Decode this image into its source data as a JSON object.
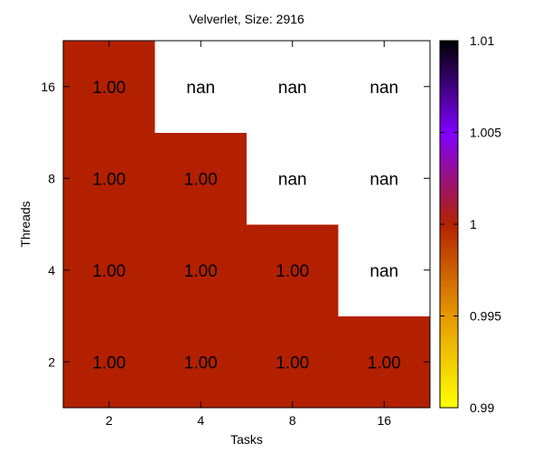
{
  "chart_data": {
    "type": "heatmap",
    "title": "Velverlet, Size: 2916",
    "xlabel": "Tasks",
    "ylabel": "Threads",
    "x_categories": [
      "2",
      "4",
      "8",
      "16"
    ],
    "y_categories": [
      "2",
      "4",
      "8",
      "16"
    ],
    "cells": [
      [
        "1.00",
        "1.00",
        "1.00",
        "1.00"
      ],
      [
        "1.00",
        "1.00",
        "1.00",
        "nan"
      ],
      [
        "1.00",
        "1.00",
        "nan",
        "nan"
      ],
      [
        "1.00",
        "nan",
        "nan",
        "nan"
      ]
    ],
    "values": [
      [
        1.0,
        1.0,
        1.0,
        1.0
      ],
      [
        1.0,
        1.0,
        1.0,
        null
      ],
      [
        1.0,
        1.0,
        null,
        null
      ],
      [
        1.0,
        null,
        null,
        null
      ]
    ],
    "colorbar": {
      "range": [
        0.99,
        1.01
      ],
      "tick_values": [
        0.99,
        0.995,
        1.0,
        1.005,
        1.01
      ],
      "tick_labels": [
        "0.99",
        "0.995",
        "1",
        "1.005",
        "1.01"
      ],
      "palette": [
        "#ffff00",
        "#e69900",
        "#b22200",
        "#8000ff",
        "#000000"
      ]
    },
    "cell_color": "#b32000",
    "nan_color": "#ffffff"
  }
}
